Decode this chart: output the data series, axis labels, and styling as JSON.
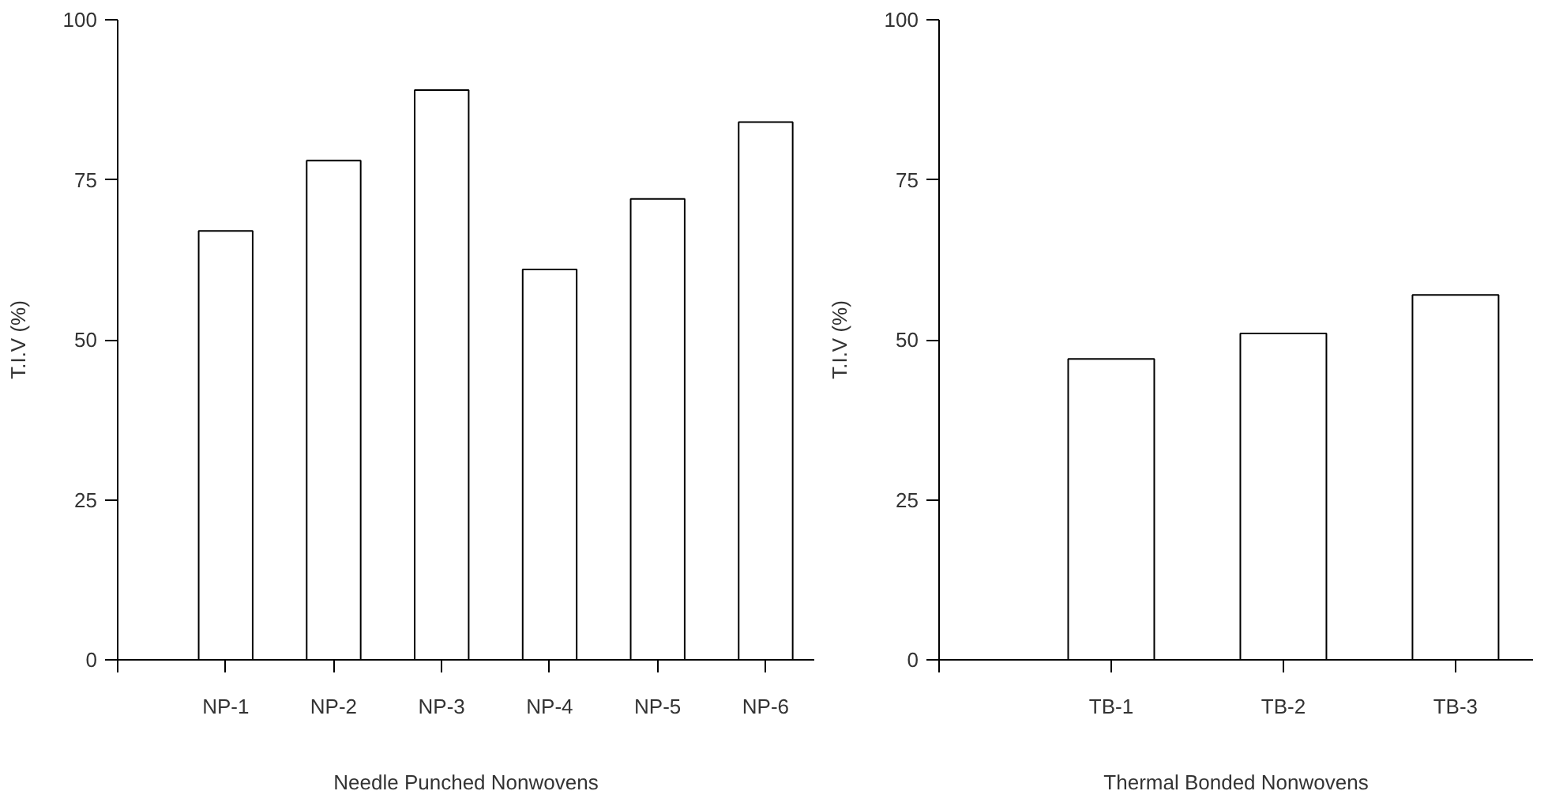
{
  "chart_data": [
    {
      "type": "bar",
      "categories": [
        "NP-1",
        "NP-2",
        "NP-3",
        "NP-4",
        "NP-5",
        "NP-6"
      ],
      "values": [
        67,
        78,
        89,
        61,
        72,
        84
      ],
      "color": "#ffffff",
      "xlabel": "Needle Punched Nonwovens",
      "ylabel": "T.I.V (%)",
      "ylim": [
        0,
        100
      ],
      "yticks": [
        0,
        25,
        50,
        75,
        100
      ],
      "grid": false
    },
    {
      "type": "bar",
      "categories": [
        "TB-1",
        "TB-2",
        "TB-3"
      ],
      "values": [
        47,
        51,
        57
      ],
      "color": "#ffffff",
      "xlabel": "Thermal Bonded Nonwovens",
      "ylabel": "T.I.V (%)",
      "ylim": [
        0,
        100
      ],
      "yticks": [
        0,
        25,
        50,
        75,
        100
      ],
      "grid": false
    }
  ]
}
